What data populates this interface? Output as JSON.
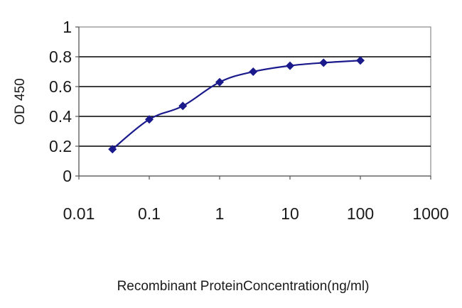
{
  "chart_data": {
    "type": "line",
    "title": "",
    "xlabel": "Recombinant ProteinConcentration(ng/ml)",
    "ylabel": "OD 450",
    "xscale": "log",
    "xlim": [
      0.01,
      1000
    ],
    "ylim": [
      0,
      1
    ],
    "grid": "horizontal major gridlines",
    "legend": "none",
    "x_ticks": [
      "0.01",
      "0.1",
      "1",
      "10",
      "100",
      "1000"
    ],
    "y_ticks": [
      "0",
      "0.2",
      "0.4",
      "0.6",
      "0.8",
      "1"
    ],
    "series": [
      {
        "x": [
          0.03,
          0.1,
          0.3,
          1,
          3,
          10,
          30,
          100
        ],
        "y": [
          0.18,
          0.38,
          0.47,
          0.63,
          0.7,
          0.74,
          0.76,
          0.775
        ],
        "color": "#1a1a8c",
        "marker": "diamond"
      }
    ]
  }
}
